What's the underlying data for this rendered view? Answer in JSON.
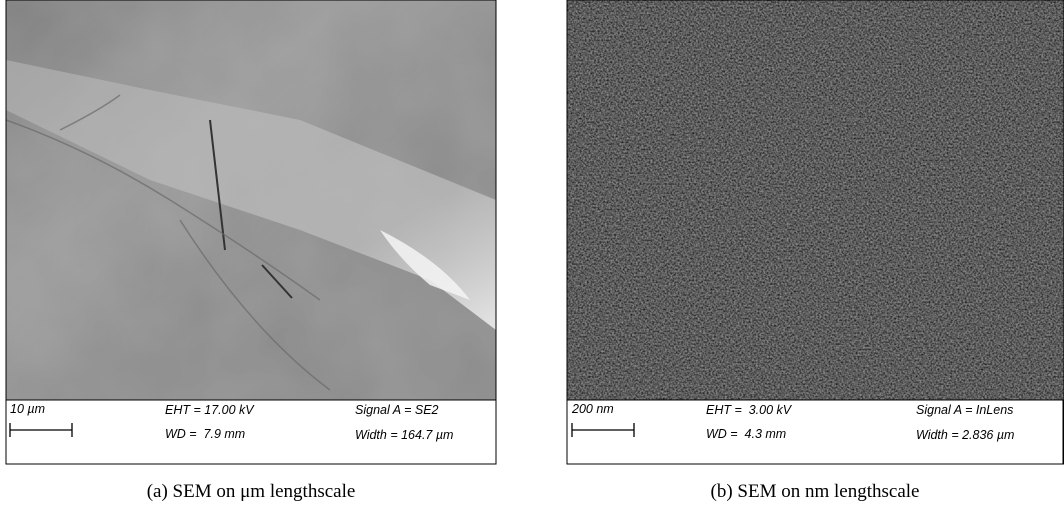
{
  "panels": [
    {
      "scale_bar": "10 µm",
      "eht": "EHT = 17.00 kV",
      "wd": "WD =  7.9 mm",
      "signal": "Signal A = SE2",
      "width": "Width = 164.7 µm",
      "caption": "(a) SEM on μm lengthscale"
    },
    {
      "scale_bar": "200 nm",
      "eht": "EHT =  3.00 kV",
      "wd": "WD =  4.3 mm",
      "signal": "Signal A = InLens",
      "width": "Width = 2.836 µm",
      "caption": "(b) SEM on nm lengthscale"
    }
  ]
}
